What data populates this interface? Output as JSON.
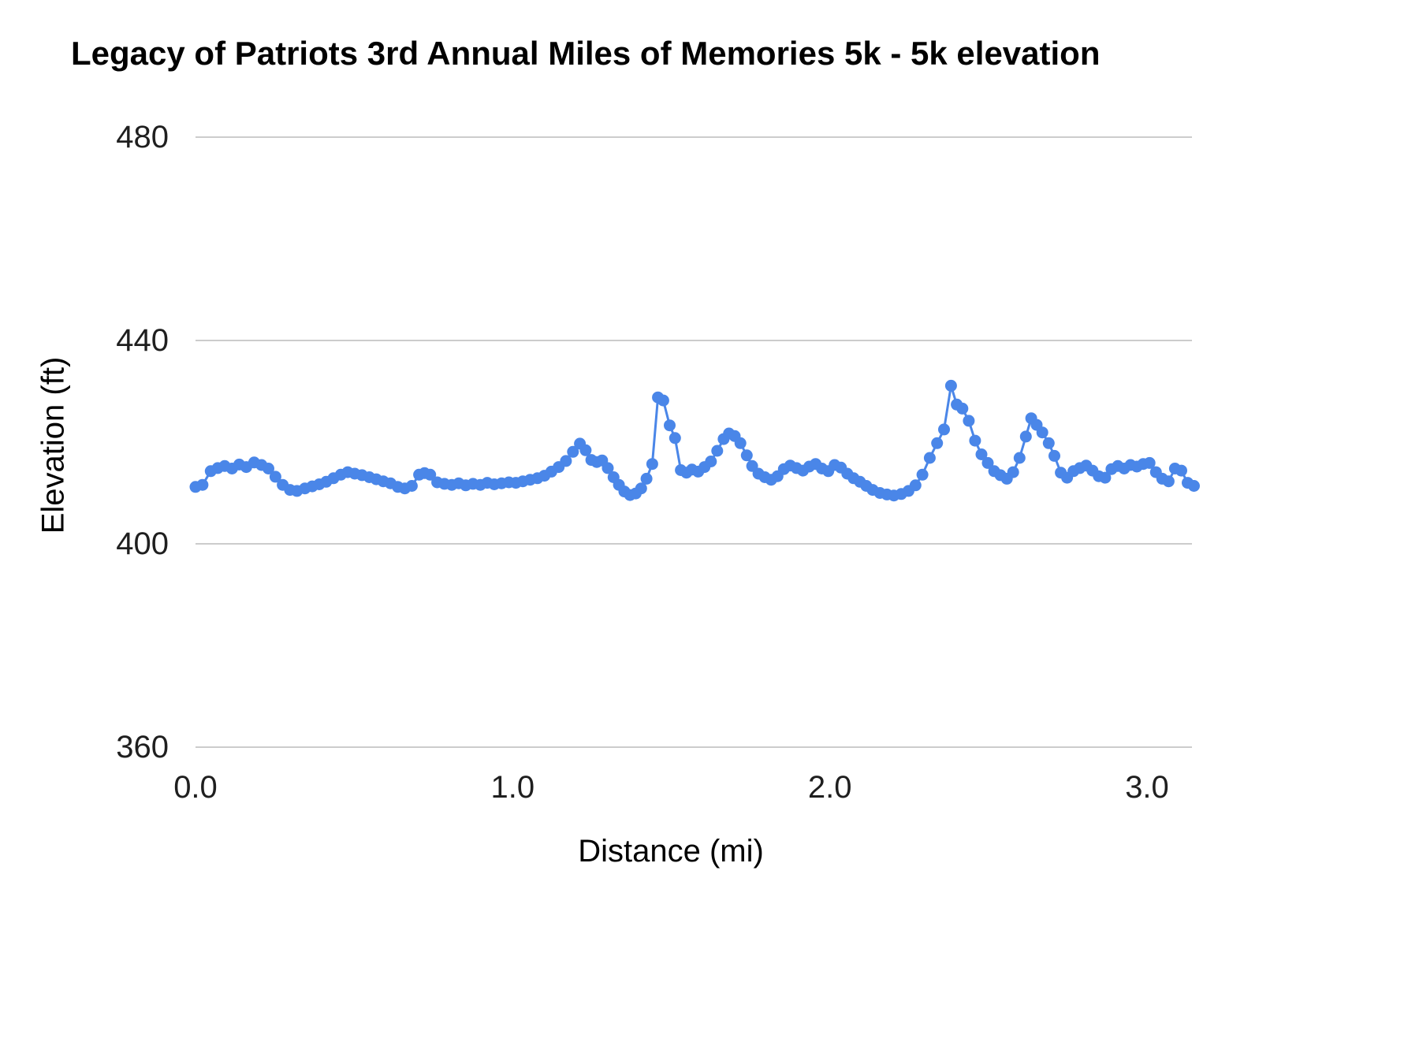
{
  "chart": {
    "title": "Legacy of Patriots 3rd Annual Miles of Memories 5k - 5k elevation",
    "xlabel": "Distance (mi)",
    "ylabel": "Elevation (ft)"
  },
  "chart_data": {
    "type": "line",
    "title": "Legacy of Patriots 3rd Annual Miles of Memories 5k - 5k elevation",
    "xlabel": "Distance (mi)",
    "ylabel": "Elevation (ft)",
    "xlim": [
      0.0,
      3.2
    ],
    "ylim": [
      360,
      480
    ],
    "x_ticks": [
      0.0,
      1.0,
      2.0,
      3.0
    ],
    "x_tick_labels": [
      "0.0",
      "1.0",
      "2.0",
      "3.0"
    ],
    "y_ticks": [
      360,
      400,
      440,
      480
    ],
    "y_tick_labels": [
      "360",
      "400",
      "440",
      "480"
    ],
    "grid": true,
    "legend": "none",
    "series_color": "#4a86e8",
    "gridline_color": "#cccccc",
    "tick_label_color": "#1f1f1f",
    "marker_radius": 7.5,
    "line_width": 3,
    "points": [
      [
        0.0,
        411.2
      ],
      [
        0.022,
        411.6
      ],
      [
        0.048,
        414.3
      ],
      [
        0.07,
        414.9
      ],
      [
        0.092,
        415.3
      ],
      [
        0.115,
        414.8
      ],
      [
        0.138,
        415.6
      ],
      [
        0.16,
        415.1
      ],
      [
        0.185,
        416.0
      ],
      [
        0.208,
        415.5
      ],
      [
        0.23,
        414.8
      ],
      [
        0.252,
        413.2
      ],
      [
        0.275,
        411.6
      ],
      [
        0.298,
        410.6
      ],
      [
        0.32,
        410.4
      ],
      [
        0.345,
        410.9
      ],
      [
        0.368,
        411.3
      ],
      [
        0.39,
        411.7
      ],
      [
        0.412,
        412.2
      ],
      [
        0.435,
        412.9
      ],
      [
        0.458,
        413.6
      ],
      [
        0.48,
        414.1
      ],
      [
        0.502,
        413.8
      ],
      [
        0.525,
        413.5
      ],
      [
        0.548,
        413.1
      ],
      [
        0.57,
        412.7
      ],
      [
        0.592,
        412.3
      ],
      [
        0.615,
        411.9
      ],
      [
        0.638,
        411.2
      ],
      [
        0.66,
        410.9
      ],
      [
        0.682,
        411.4
      ],
      [
        0.705,
        413.6
      ],
      [
        0.722,
        413.9
      ],
      [
        0.74,
        413.6
      ],
      [
        0.762,
        412.1
      ],
      [
        0.785,
        411.8
      ],
      [
        0.808,
        411.6
      ],
      [
        0.83,
        411.9
      ],
      [
        0.852,
        411.5
      ],
      [
        0.875,
        411.8
      ],
      [
        0.898,
        411.6
      ],
      [
        0.92,
        412.0
      ],
      [
        0.942,
        411.7
      ],
      [
        0.965,
        411.9
      ],
      [
        0.988,
        412.1
      ],
      [
        1.01,
        412.0
      ],
      [
        1.032,
        412.3
      ],
      [
        1.055,
        412.6
      ],
      [
        1.078,
        412.9
      ],
      [
        1.1,
        413.4
      ],
      [
        1.122,
        414.2
      ],
      [
        1.145,
        415.1
      ],
      [
        1.168,
        416.3
      ],
      [
        1.19,
        418.1
      ],
      [
        1.212,
        419.7
      ],
      [
        1.23,
        418.4
      ],
      [
        1.248,
        416.5
      ],
      [
        1.265,
        416.1
      ],
      [
        1.282,
        416.4
      ],
      [
        1.3,
        414.9
      ],
      [
        1.318,
        413.1
      ],
      [
        1.335,
        411.6
      ],
      [
        1.352,
        410.3
      ],
      [
        1.37,
        409.6
      ],
      [
        1.388,
        409.9
      ],
      [
        1.405,
        410.9
      ],
      [
        1.422,
        412.8
      ],
      [
        1.44,
        415.7
      ],
      [
        1.458,
        428.8
      ],
      [
        1.475,
        428.2
      ],
      [
        1.495,
        423.3
      ],
      [
        1.512,
        420.8
      ],
      [
        1.53,
        414.5
      ],
      [
        1.548,
        414.0
      ],
      [
        1.565,
        414.6
      ],
      [
        1.585,
        414.2
      ],
      [
        1.605,
        415.1
      ],
      [
        1.625,
        416.2
      ],
      [
        1.645,
        418.3
      ],
      [
        1.665,
        420.6
      ],
      [
        1.682,
        421.7
      ],
      [
        1.7,
        421.2
      ],
      [
        1.718,
        419.8
      ],
      [
        1.738,
        417.4
      ],
      [
        1.755,
        415.3
      ],
      [
        1.775,
        413.8
      ],
      [
        1.795,
        413.1
      ],
      [
        1.815,
        412.6
      ],
      [
        1.835,
        413.3
      ],
      [
        1.855,
        414.7
      ],
      [
        1.875,
        415.4
      ],
      [
        1.895,
        414.9
      ],
      [
        1.915,
        414.4
      ],
      [
        1.935,
        415.2
      ],
      [
        1.955,
        415.7
      ],
      [
        1.975,
        414.8
      ],
      [
        1.995,
        414.3
      ],
      [
        2.015,
        415.5
      ],
      [
        2.035,
        415.0
      ],
      [
        2.055,
        413.8
      ],
      [
        2.075,
        412.9
      ],
      [
        2.095,
        412.2
      ],
      [
        2.115,
        411.4
      ],
      [
        2.135,
        410.6
      ],
      [
        2.158,
        410.0
      ],
      [
        2.18,
        409.7
      ],
      [
        2.202,
        409.5
      ],
      [
        2.225,
        409.8
      ],
      [
        2.248,
        410.4
      ],
      [
        2.27,
        411.5
      ],
      [
        2.292,
        413.6
      ],
      [
        2.315,
        416.9
      ],
      [
        2.338,
        419.8
      ],
      [
        2.36,
        422.5
      ],
      [
        2.382,
        431.1
      ],
      [
        2.4,
        427.4
      ],
      [
        2.418,
        426.6
      ],
      [
        2.438,
        424.2
      ],
      [
        2.458,
        420.3
      ],
      [
        2.478,
        417.6
      ],
      [
        2.498,
        415.9
      ],
      [
        2.518,
        414.3
      ],
      [
        2.538,
        413.5
      ],
      [
        2.558,
        412.8
      ],
      [
        2.578,
        414.1
      ],
      [
        2.598,
        416.9
      ],
      [
        2.618,
        421.1
      ],
      [
        2.635,
        424.7
      ],
      [
        2.652,
        423.4
      ],
      [
        2.67,
        421.9
      ],
      [
        2.69,
        419.8
      ],
      [
        2.708,
        417.3
      ],
      [
        2.728,
        414.0
      ],
      [
        2.748,
        413.0
      ],
      [
        2.768,
        414.3
      ],
      [
        2.788,
        414.9
      ],
      [
        2.808,
        415.4
      ],
      [
        2.828,
        414.4
      ],
      [
        2.848,
        413.3
      ],
      [
        2.868,
        413.0
      ],
      [
        2.888,
        414.7
      ],
      [
        2.908,
        415.3
      ],
      [
        2.928,
        414.8
      ],
      [
        2.948,
        415.5
      ],
      [
        2.968,
        415.2
      ],
      [
        2.988,
        415.7
      ],
      [
        3.008,
        415.9
      ],
      [
        3.028,
        414.1
      ],
      [
        3.048,
        412.8
      ],
      [
        3.068,
        412.3
      ],
      [
        3.088,
        414.8
      ],
      [
        3.108,
        414.4
      ],
      [
        3.128,
        412.0
      ],
      [
        3.148,
        411.4
      ]
    ]
  }
}
